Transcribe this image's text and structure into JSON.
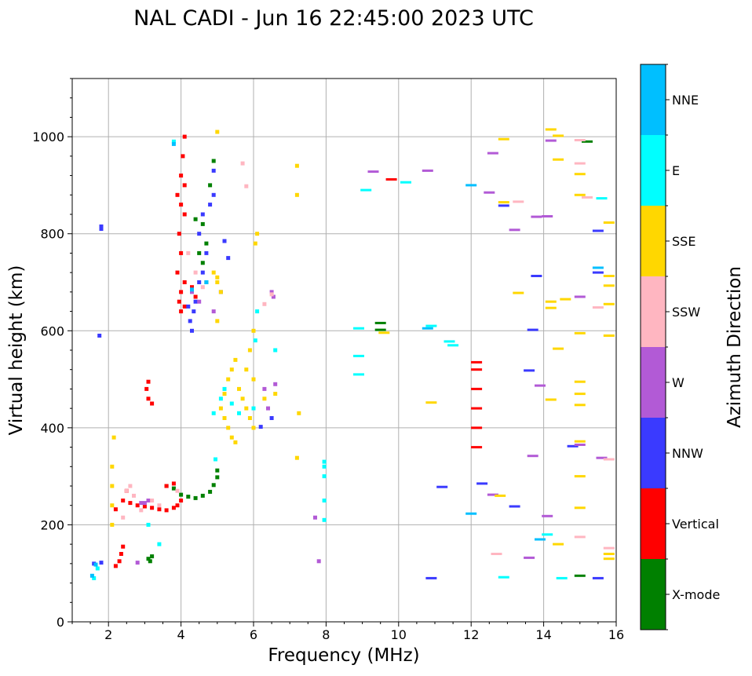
{
  "chart_data": {
    "type": "scatter",
    "title": "NAL CADI - Jun 16 22:45:00 2023 UTC",
    "xlabel": "Frequency (MHz)",
    "ylabel": "Virtual height (km)",
    "xlim": [
      1,
      16
    ],
    "ylim": [
      0,
      1120
    ],
    "xticks": [
      2,
      4,
      6,
      8,
      10,
      12,
      14,
      16
    ],
    "yticks": [
      0,
      200,
      400,
      600,
      800,
      1000
    ],
    "grid": true,
    "colorbar": {
      "label": "Azimuth Direction",
      "categories": [
        {
          "name": "X-mode",
          "color": "#008000"
        },
        {
          "name": "Vertical",
          "color": "#ff0000"
        },
        {
          "name": "NNW",
          "color": "#3a3aff"
        },
        {
          "name": "W",
          "color": "#b25ad6"
        },
        {
          "name": "SSW",
          "color": "#ffb6c1"
        },
        {
          "name": "SSE",
          "color": "#ffd700"
        },
        {
          "name": "E",
          "color": "#00ffff"
        },
        {
          "name": "NNE",
          "color": "#00bfff"
        }
      ]
    },
    "series": [
      {
        "name": "X-mode",
        "points": [
          [
            3.1,
            130
          ],
          [
            3.15,
            125
          ],
          [
            3.2,
            135
          ],
          [
            4.0,
            262
          ],
          [
            4.2,
            258
          ],
          [
            4.4,
            255
          ],
          [
            4.6,
            260
          ],
          [
            4.8,
            268
          ],
          [
            4.9,
            282
          ],
          [
            5.0,
            298
          ],
          [
            5.0,
            312
          ],
          [
            3.8,
            275
          ],
          [
            3.6,
            280
          ],
          [
            4.4,
            830
          ],
          [
            4.6,
            820
          ],
          [
            4.7,
            780
          ],
          [
            4.5,
            760
          ],
          [
            4.6,
            740
          ],
          [
            4.8,
            900
          ],
          [
            4.9,
            950
          ],
          [
            4.7,
            700
          ],
          [
            9.5,
            602
          ],
          [
            9.5,
            616
          ],
          [
            15.2,
            990
          ],
          [
            15.0,
            95
          ]
        ]
      },
      {
        "name": "Vertical",
        "points": [
          [
            2.2,
            115
          ],
          [
            2.3,
            125
          ],
          [
            2.35,
            140
          ],
          [
            2.4,
            155
          ],
          [
            2.5,
            270
          ],
          [
            2.4,
            250
          ],
          [
            2.6,
            245
          ],
          [
            2.8,
            240
          ],
          [
            3.0,
            238
          ],
          [
            3.2,
            235
          ],
          [
            3.4,
            232
          ],
          [
            3.6,
            230
          ],
          [
            3.8,
            235
          ],
          [
            3.9,
            240
          ],
          [
            4.0,
            250
          ],
          [
            2.2,
            232
          ],
          [
            3.1,
            460
          ],
          [
            3.2,
            450
          ],
          [
            3.05,
            480
          ],
          [
            3.1,
            495
          ],
          [
            3.6,
            280
          ],
          [
            3.8,
            285
          ],
          [
            3.9,
            880
          ],
          [
            4.0,
            860
          ],
          [
            4.1,
            840
          ],
          [
            3.95,
            800
          ],
          [
            4.0,
            760
          ],
          [
            3.9,
            720
          ],
          [
            4.1,
            700
          ],
          [
            4.0,
            680
          ],
          [
            3.95,
            660
          ],
          [
            4.1,
            650
          ],
          [
            4.0,
            640
          ],
          [
            4.05,
            960
          ],
          [
            4.1,
            1000
          ],
          [
            4.0,
            920
          ],
          [
            4.1,
            900
          ],
          [
            4.3,
            690
          ],
          [
            4.4,
            670
          ],
          [
            12.15,
            360
          ],
          [
            12.15,
            400
          ],
          [
            12.15,
            440
          ],
          [
            12.15,
            480
          ],
          [
            12.15,
            520
          ],
          [
            12.15,
            535
          ],
          [
            9.8,
            912
          ]
        ]
      },
      {
        "name": "NNW",
        "points": [
          [
            1.8,
            810
          ],
          [
            1.8,
            815
          ],
          [
            1.75,
            590
          ],
          [
            4.2,
            650
          ],
          [
            4.25,
            620
          ],
          [
            4.3,
            600
          ],
          [
            4.35,
            640
          ],
          [
            4.4,
            660
          ],
          [
            4.5,
            700
          ],
          [
            4.6,
            720
          ],
          [
            4.7,
            760
          ],
          [
            4.5,
            800
          ],
          [
            4.6,
            840
          ],
          [
            4.8,
            860
          ],
          [
            4.9,
            880
          ],
          [
            4.9,
            930
          ],
          [
            5.1,
            680
          ],
          [
            5.3,
            750
          ],
          [
            5.2,
            785
          ],
          [
            6.2,
            402
          ],
          [
            6.5,
            420
          ],
          [
            1.6,
            120
          ],
          [
            1.8,
            122
          ],
          [
            11.2,
            278
          ],
          [
            12.3,
            285
          ],
          [
            12.9,
            858
          ],
          [
            13.7,
            602
          ],
          [
            13.8,
            713
          ],
          [
            13.2,
            238
          ],
          [
            13.6,
            518
          ],
          [
            14.8,
            362
          ],
          [
            15.5,
            720
          ],
          [
            15.5,
            806
          ],
          [
            15.5,
            90
          ],
          [
            10.9,
            90
          ]
        ]
      },
      {
        "name": "W",
        "points": [
          [
            2.8,
            122
          ],
          [
            2.9,
            245
          ],
          [
            3.1,
            250
          ],
          [
            3.0,
            245
          ],
          [
            4.3,
            680
          ],
          [
            4.5,
            660
          ],
          [
            4.9,
            640
          ],
          [
            6.5,
            680
          ],
          [
            6.55,
            670
          ],
          [
            6.6,
            490
          ],
          [
            6.3,
            480
          ],
          [
            6.4,
            440
          ],
          [
            7.8,
            125
          ],
          [
            7.7,
            215
          ],
          [
            12.6,
            262
          ],
          [
            12.5,
            885
          ],
          [
            12.6,
            966
          ],
          [
            13.2,
            808
          ],
          [
            13.8,
            835
          ],
          [
            13.9,
            487
          ],
          [
            13.7,
            342
          ],
          [
            13.6,
            132
          ],
          [
            14.1,
            218
          ],
          [
            14.2,
            992
          ],
          [
            14.1,
            836
          ],
          [
            15.0,
            670
          ],
          [
            15.0,
            365
          ],
          [
            15.6,
            338
          ],
          [
            10.8,
            930
          ],
          [
            9.3,
            928
          ]
        ]
      },
      {
        "name": "SSW",
        "points": [
          [
            2.4,
            215
          ],
          [
            2.5,
            270
          ],
          [
            2.6,
            280
          ],
          [
            2.7,
            260
          ],
          [
            2.9,
            230
          ],
          [
            3.2,
            250
          ],
          [
            3.4,
            240
          ],
          [
            3.9,
            270
          ],
          [
            4.2,
            760
          ],
          [
            4.4,
            720
          ],
          [
            4.6,
            690
          ],
          [
            6.3,
            655
          ],
          [
            6.5,
            675
          ],
          [
            12.7,
            140
          ],
          [
            15.0,
            175
          ],
          [
            15.0,
            945
          ],
          [
            15.0,
            993
          ],
          [
            15.5,
            648
          ],
          [
            15.8,
            152
          ],
          [
            15.8,
            335
          ],
          [
            15.2,
            875
          ],
          [
            5.7,
            945
          ],
          [
            5.8,
            898
          ],
          [
            13.3,
            866
          ]
        ]
      },
      {
        "name": "SSE",
        "points": [
          [
            2.1,
            200
          ],
          [
            2.1,
            240
          ],
          [
            2.1,
            280
          ],
          [
            2.1,
            320
          ],
          [
            2.15,
            380
          ],
          [
            5.0,
            1010
          ],
          [
            5.0,
            700
          ],
          [
            5.1,
            680
          ],
          [
            4.9,
            720
          ],
          [
            5.0,
            710
          ],
          [
            5.0,
            620
          ],
          [
            5.1,
            440
          ],
          [
            5.2,
            420
          ],
          [
            5.3,
            400
          ],
          [
            5.4,
            380
          ],
          [
            5.5,
            370
          ],
          [
            5.2,
            470
          ],
          [
            5.3,
            500
          ],
          [
            5.4,
            520
          ],
          [
            5.5,
            540
          ],
          [
            5.6,
            480
          ],
          [
            5.7,
            460
          ],
          [
            5.8,
            440
          ],
          [
            5.9,
            420
          ],
          [
            6.0,
            400
          ],
          [
            6.0,
            500
          ],
          [
            5.8,
            520
          ],
          [
            5.9,
            560
          ],
          [
            6.0,
            600
          ],
          [
            6.05,
            780
          ],
          [
            6.1,
            800
          ],
          [
            6.3,
            460
          ],
          [
            6.6,
            470
          ],
          [
            7.2,
            940
          ],
          [
            7.2,
            880
          ],
          [
            7.2,
            338
          ],
          [
            7.25,
            430
          ],
          [
            10.9,
            452
          ],
          [
            12.8,
            260
          ],
          [
            13.3,
            678
          ],
          [
            12.9,
            865
          ],
          [
            12.9,
            995
          ],
          [
            14.2,
            1015
          ],
          [
            14.4,
            1002
          ],
          [
            14.4,
            953
          ],
          [
            14.6,
            665
          ],
          [
            14.2,
            660
          ],
          [
            14.2,
            647
          ],
          [
            14.2,
            458
          ],
          [
            14.4,
            563
          ],
          [
            14.4,
            160
          ],
          [
            15.0,
            235
          ],
          [
            15.0,
            300
          ],
          [
            15.0,
            372
          ],
          [
            15.0,
            447
          ],
          [
            15.0,
            470
          ],
          [
            15.0,
            495
          ],
          [
            15.0,
            595
          ],
          [
            15.0,
            923
          ],
          [
            15.0,
            880
          ],
          [
            15.8,
            130
          ],
          [
            15.8,
            140
          ],
          [
            15.8,
            590
          ],
          [
            15.8,
            655
          ],
          [
            15.8,
            693
          ],
          [
            15.8,
            713
          ],
          [
            15.8,
            823
          ],
          [
            9.6,
            596
          ]
        ]
      },
      {
        "name": "E",
        "points": [
          [
            1.6,
            90
          ],
          [
            1.7,
            110
          ],
          [
            3.1,
            200
          ],
          [
            3.4,
            160
          ],
          [
            3.8,
            990
          ],
          [
            4.95,
            335
          ],
          [
            4.9,
            430
          ],
          [
            5.1,
            460
          ],
          [
            5.2,
            480
          ],
          [
            5.4,
            450
          ],
          [
            5.6,
            430
          ],
          [
            6.0,
            440
          ],
          [
            6.05,
            580
          ],
          [
            6.1,
            640
          ],
          [
            6.6,
            560
          ],
          [
            7.95,
            210
          ],
          [
            7.95,
            250
          ],
          [
            7.95,
            300
          ],
          [
            7.95,
            320
          ],
          [
            7.95,
            330
          ],
          [
            8.9,
            510
          ],
          [
            8.9,
            548
          ],
          [
            8.9,
            605
          ],
          [
            9.1,
            890
          ],
          [
            10.9,
            610
          ],
          [
            11.4,
            578
          ],
          [
            11.5,
            570
          ],
          [
            12.9,
            92
          ],
          [
            14.1,
            180
          ],
          [
            14.5,
            90
          ],
          [
            15.6,
            873
          ],
          [
            10.2,
            906
          ]
        ]
      },
      {
        "name": "NNE",
        "points": [
          [
            1.55,
            95
          ],
          [
            1.65,
            118
          ],
          [
            3.8,
            985
          ],
          [
            4.3,
            685
          ],
          [
            4.7,
            700
          ],
          [
            10.8,
            605
          ],
          [
            12.0,
            900
          ],
          [
            12.0,
            223
          ],
          [
            13.9,
            170
          ],
          [
            15.5,
            730
          ]
        ]
      }
    ]
  }
}
